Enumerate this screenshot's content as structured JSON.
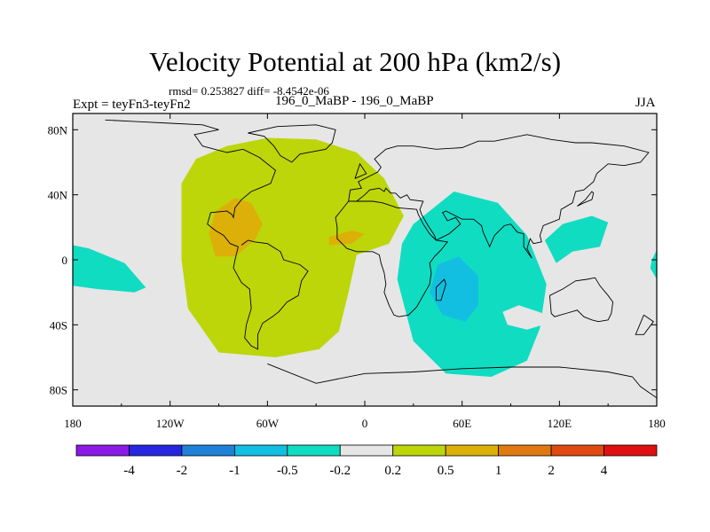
{
  "chart_data": {
    "type": "heatmap",
    "title": "Velocity Potential at 200 hPa (km2/s)",
    "stats": "rmsd= 0.253827 diff= -8.4542e-06",
    "experiment": "Expt = teyFn3-teyFn2",
    "runs": "196_0_MaBP - 196_0_MaBP",
    "season": "JJA",
    "x_ticks": [
      "180",
      "120W",
      "60W",
      "0",
      "60E",
      "120E",
      "180"
    ],
    "x_values": [
      -180,
      -120,
      -60,
      0,
      60,
      120,
      180
    ],
    "y_ticks": [
      "80N",
      "40N",
      "0",
      "40S",
      "80S"
    ],
    "y_values": [
      80,
      40,
      0,
      -40,
      -80
    ],
    "xlim": [
      -180,
      180
    ],
    "ylim": [
      -90,
      90
    ],
    "levels": [
      "-4",
      "-2",
      "-1",
      "-0.5",
      "-0.2",
      "0.2",
      "0.5",
      "1",
      "2",
      "4"
    ],
    "level_colors": [
      "#8a1ae6",
      "#2626e0",
      "#1f82d8",
      "#12bfe0",
      "#10dcc2",
      "#e6e6e6",
      "#bcd60a",
      "#dcb008",
      "#e07a10",
      "#e04a10",
      "#e01010"
    ],
    "regions": [
      {
        "name": "positive-anomaly",
        "level": "0.2 to 0.5",
        "color": "#bcd60a",
        "points": [
          [
            -113,
            47
          ],
          [
            -104,
            62
          ],
          [
            -85,
            70
          ],
          [
            -60,
            75
          ],
          [
            -30,
            74
          ],
          [
            -5,
            66
          ],
          [
            12,
            50
          ],
          [
            24,
            27
          ],
          [
            15,
            10
          ],
          [
            -5,
            3
          ],
          [
            -10,
            -20
          ],
          [
            -16,
            -44
          ],
          [
            -28,
            -55
          ],
          [
            -55,
            -60
          ],
          [
            -90,
            -57
          ],
          [
            -109,
            -30
          ],
          [
            -113,
            0
          ]
        ]
      },
      {
        "name": "positive-core-south-america",
        "level": "0.5 to 1",
        "color": "#dcb008",
        "points": [
          [
            -92,
            30
          ],
          [
            -80,
            38
          ],
          [
            -70,
            35
          ],
          [
            -63,
            22
          ],
          [
            -68,
            12
          ],
          [
            -80,
            2
          ],
          [
            -92,
            2
          ],
          [
            -96,
            16
          ]
        ]
      },
      {
        "name": "positive-core-atlantic",
        "level": "0.5 to 1",
        "color": "#dcb008",
        "points": [
          [
            -22,
            14
          ],
          [
            -8,
            18
          ],
          [
            0,
            16
          ],
          [
            -8,
            10
          ],
          [
            -22,
            9
          ]
        ]
      },
      {
        "name": "negative-anomaly-indian-ocean",
        "level": "-0.5 to -0.2",
        "color": "#10dcc2",
        "points": [
          [
            30,
            22
          ],
          [
            55,
            42
          ],
          [
            82,
            35
          ],
          [
            100,
            15
          ],
          [
            112,
            -15
          ],
          [
            108,
            -42
          ],
          [
            100,
            -62
          ],
          [
            78,
            -72
          ],
          [
            50,
            -70
          ],
          [
            30,
            -50
          ],
          [
            20,
            -12
          ],
          [
            23,
            10
          ]
        ]
      },
      {
        "name": "negative-core-indian-ocean",
        "level": "-1 to -0.5",
        "color": "#12bfe0",
        "points": [
          [
            45,
            -3
          ],
          [
            58,
            2
          ],
          [
            70,
            -10
          ],
          [
            70,
            -28
          ],
          [
            62,
            -38
          ],
          [
            48,
            -34
          ],
          [
            40,
            -20
          ]
        ]
      },
      {
        "name": "negative-anomaly-west-pacific",
        "level": "-0.5 to -0.2",
        "color": "#10dcc2",
        "points": [
          [
            111,
            12
          ],
          [
            122,
            22
          ],
          [
            140,
            27
          ],
          [
            150,
            23
          ],
          [
            145,
            8
          ],
          [
            128,
            5
          ],
          [
            118,
            -2
          ]
        ]
      },
      {
        "name": "negative-anomaly-east-pacific-west",
        "level": "-0.5 to -0.2",
        "color": "#10dcc2",
        "points": [
          [
            -180,
            9
          ],
          [
            -170,
            7
          ],
          [
            -148,
            -2
          ],
          [
            -135,
            -17
          ],
          [
            -142,
            -20
          ],
          [
            -165,
            -18
          ],
          [
            -180,
            -16
          ]
        ]
      },
      {
        "name": "negative-anomaly-east-pacific-east",
        "level": "-0.5 to -0.2",
        "color": "#10dcc2",
        "points": [
          [
            180,
            6
          ],
          [
            177,
            0
          ],
          [
            176,
            -5
          ],
          [
            180,
            -12
          ]
        ]
      },
      {
        "name": "neutral-hole",
        "level": "-0.2 to 0.2",
        "color": "#e6e6e6",
        "points": [
          [
            85,
            -32
          ],
          [
            95,
            -28
          ],
          [
            110,
            -33
          ],
          [
            110,
            -40
          ],
          [
            100,
            -43
          ],
          [
            88,
            -40
          ]
        ]
      }
    ],
    "coastlines": [
      [
        [
          -160,
          86
        ],
        [
          -140,
          85
        ],
        [
          -120,
          84
        ],
        [
          -100,
          83
        ],
        [
          -90,
          80
        ],
        [
          -105,
          77
        ],
        [
          -100,
          70
        ],
        [
          -85,
          66
        ],
        [
          -75,
          68
        ],
        [
          -65,
          63
        ],
        [
          -55,
          55
        ],
        [
          -58,
          47
        ],
        [
          -65,
          44
        ],
        [
          -70,
          42
        ],
        [
          -76,
          37
        ],
        [
          -80,
          32
        ],
        [
          -81,
          26
        ],
        [
          -82,
          28
        ],
        [
          -85,
          30
        ],
        [
          -95,
          29
        ],
        [
          -97,
          22
        ],
        [
          -92,
          18
        ],
        [
          -87,
          15
        ],
        [
          -83,
          10
        ],
        [
          -78,
          8
        ],
        [
          -80,
          0
        ],
        [
          -81,
          -5
        ],
        [
          -76,
          -14
        ],
        [
          -71,
          -18
        ],
        [
          -70,
          -30
        ],
        [
          -73,
          -40
        ],
        [
          -74,
          -48
        ],
        [
          -70,
          -53
        ],
        [
          -66,
          -55
        ],
        [
          -66,
          -46
        ],
        [
          -63,
          -39
        ],
        [
          -57,
          -35
        ],
        [
          -53,
          -32
        ],
        [
          -48,
          -26
        ],
        [
          -41,
          -22
        ],
        [
          -39,
          -13
        ],
        [
          -35,
          -7
        ],
        [
          -40,
          -3
        ],
        [
          -50,
          0
        ],
        [
          -52,
          5
        ],
        [
          -60,
          10
        ],
        [
          -68,
          11
        ],
        [
          -72,
          12
        ],
        [
          -76,
          9
        ]
      ],
      [
        [
          -10,
          36
        ],
        [
          -18,
          26
        ],
        [
          -17,
          20
        ],
        [
          -17,
          13
        ],
        [
          -11,
          7
        ],
        [
          -5,
          5
        ],
        [
          5,
          5
        ],
        [
          9,
          3
        ],
        [
          10,
          -2
        ],
        [
          12,
          -8
        ],
        [
          13,
          -15
        ],
        [
          12,
          -20
        ],
        [
          15,
          -28
        ],
        [
          18,
          -34
        ],
        [
          21,
          -35
        ],
        [
          27,
          -34
        ],
        [
          32,
          -29
        ],
        [
          36,
          -22
        ],
        [
          40,
          -15
        ],
        [
          41,
          -8
        ],
        [
          40,
          -2
        ],
        [
          43,
          2
        ],
        [
          47,
          6
        ],
        [
          51,
          11
        ],
        [
          44,
          12
        ],
        [
          43,
          13
        ],
        [
          40,
          16
        ],
        [
          36,
          22
        ],
        [
          33,
          28
        ],
        [
          32,
          31
        ],
        [
          20,
          32
        ],
        [
          11,
          35
        ],
        [
          5,
          36
        ],
        [
          -10,
          36
        ]
      ],
      [
        [
          -10,
          36
        ],
        [
          -9,
          43
        ],
        [
          -2,
          44
        ],
        [
          -4,
          48
        ],
        [
          2,
          51
        ],
        [
          8,
          54
        ],
        [
          10,
          57
        ],
        [
          6,
          62
        ],
        [
          13,
          68
        ],
        [
          20,
          70
        ],
        [
          30,
          70
        ],
        [
          44,
          68
        ],
        [
          60,
          69
        ],
        [
          70,
          73
        ],
        [
          80,
          73
        ],
        [
          100,
          77
        ],
        [
          115,
          74
        ],
        [
          130,
          72
        ],
        [
          140,
          72
        ],
        [
          160,
          70
        ],
        [
          175,
          66
        ],
        [
          170,
          60
        ],
        [
          160,
          58
        ],
        [
          150,
          59
        ],
        [
          143,
          53
        ],
        [
          141,
          48
        ],
        [
          135,
          43
        ],
        [
          130,
          42
        ],
        [
          128,
          35
        ],
        [
          121,
          31
        ],
        [
          120,
          25
        ],
        [
          110,
          21
        ],
        [
          108,
          15
        ],
        [
          109,
          11
        ],
        [
          104,
          10
        ],
        [
          102,
          13
        ],
        [
          100,
          7
        ],
        [
          103,
          1
        ],
        [
          98,
          8
        ],
        [
          98,
          16
        ],
        [
          94,
          17
        ],
        [
          90,
          22
        ],
        [
          86,
          21
        ],
        [
          80,
          15
        ],
        [
          77,
          8
        ],
        [
          73,
          17
        ],
        [
          72,
          21
        ],
        [
          67,
          25
        ],
        [
          60,
          25
        ],
        [
          56,
          27
        ],
        [
          50,
          30
        ],
        [
          48,
          29
        ],
        [
          51,
          24
        ],
        [
          56,
          26
        ],
        [
          59,
          22
        ],
        [
          52,
          16
        ],
        [
          44,
          12
        ],
        [
          43,
          15
        ],
        [
          39,
          21
        ],
        [
          35,
          28
        ],
        [
          34,
          31
        ],
        [
          36,
          36
        ],
        [
          28,
          37
        ],
        [
          26,
          40
        ],
        [
          22,
          38
        ],
        [
          19,
          41
        ],
        [
          16,
          41
        ],
        [
          13,
          44
        ],
        [
          12,
          42
        ],
        [
          9,
          44
        ],
        [
          3,
          43
        ],
        [
          0,
          40
        ],
        [
          -5,
          36
        ],
        [
          -10,
          36
        ]
      ],
      [
        [
          114,
          -22
        ],
        [
          122,
          -18
        ],
        [
          130,
          -13
        ],
        [
          137,
          -12
        ],
        [
          142,
          -11
        ],
        [
          145,
          -16
        ],
        [
          150,
          -22
        ],
        [
          153,
          -26
        ],
        [
          152,
          -33
        ],
        [
          150,
          -37
        ],
        [
          144,
          -38
        ],
        [
          140,
          -37
        ],
        [
          135,
          -35
        ],
        [
          131,
          -31
        ],
        [
          124,
          -33
        ],
        [
          117,
          -35
        ],
        [
          115,
          -33
        ],
        [
          114,
          -22
        ]
      ],
      [
        [
          -54,
          82
        ],
        [
          -30,
          83
        ],
        [
          -18,
          80
        ],
        [
          -20,
          72
        ],
        [
          -24,
          68
        ],
        [
          -40,
          65
        ],
        [
          -45,
          60
        ],
        [
          -52,
          64
        ],
        [
          -56,
          70
        ],
        [
          -62,
          76
        ],
        [
          -72,
          78
        ],
        [
          -54,
          82
        ]
      ],
      [
        [
          -60,
          -64
        ],
        [
          -30,
          -76
        ],
        [
          0,
          -70
        ],
        [
          30,
          -69
        ],
        [
          60,
          -67
        ],
        [
          90,
          -66
        ],
        [
          120,
          -66
        ],
        [
          150,
          -69
        ],
        [
          165,
          -72
        ],
        [
          170,
          -78
        ],
        [
          180,
          -85
        ]
      ],
      [
        [
          44,
          -25
        ],
        [
          47,
          -25
        ],
        [
          50,
          -15
        ],
        [
          49,
          -12
        ],
        [
          44,
          -17
        ],
        [
          44,
          -25
        ]
      ],
      [
        [
          131,
          33
        ],
        [
          135,
          35
        ],
        [
          140,
          37
        ],
        [
          141,
          41
        ],
        [
          140,
          42
        ],
        [
          136,
          37
        ],
        [
          131,
          33
        ]
      ],
      [
        [
          -6,
          50
        ],
        [
          -3,
          59
        ],
        [
          1,
          53
        ],
        [
          -6,
          50
        ]
      ],
      [
        [
          172,
          -34
        ],
        [
          178,
          -38
        ],
        [
          172,
          -46
        ],
        [
          167,
          -46
        ],
        [
          172,
          -34
        ]
      ]
    ]
  }
}
